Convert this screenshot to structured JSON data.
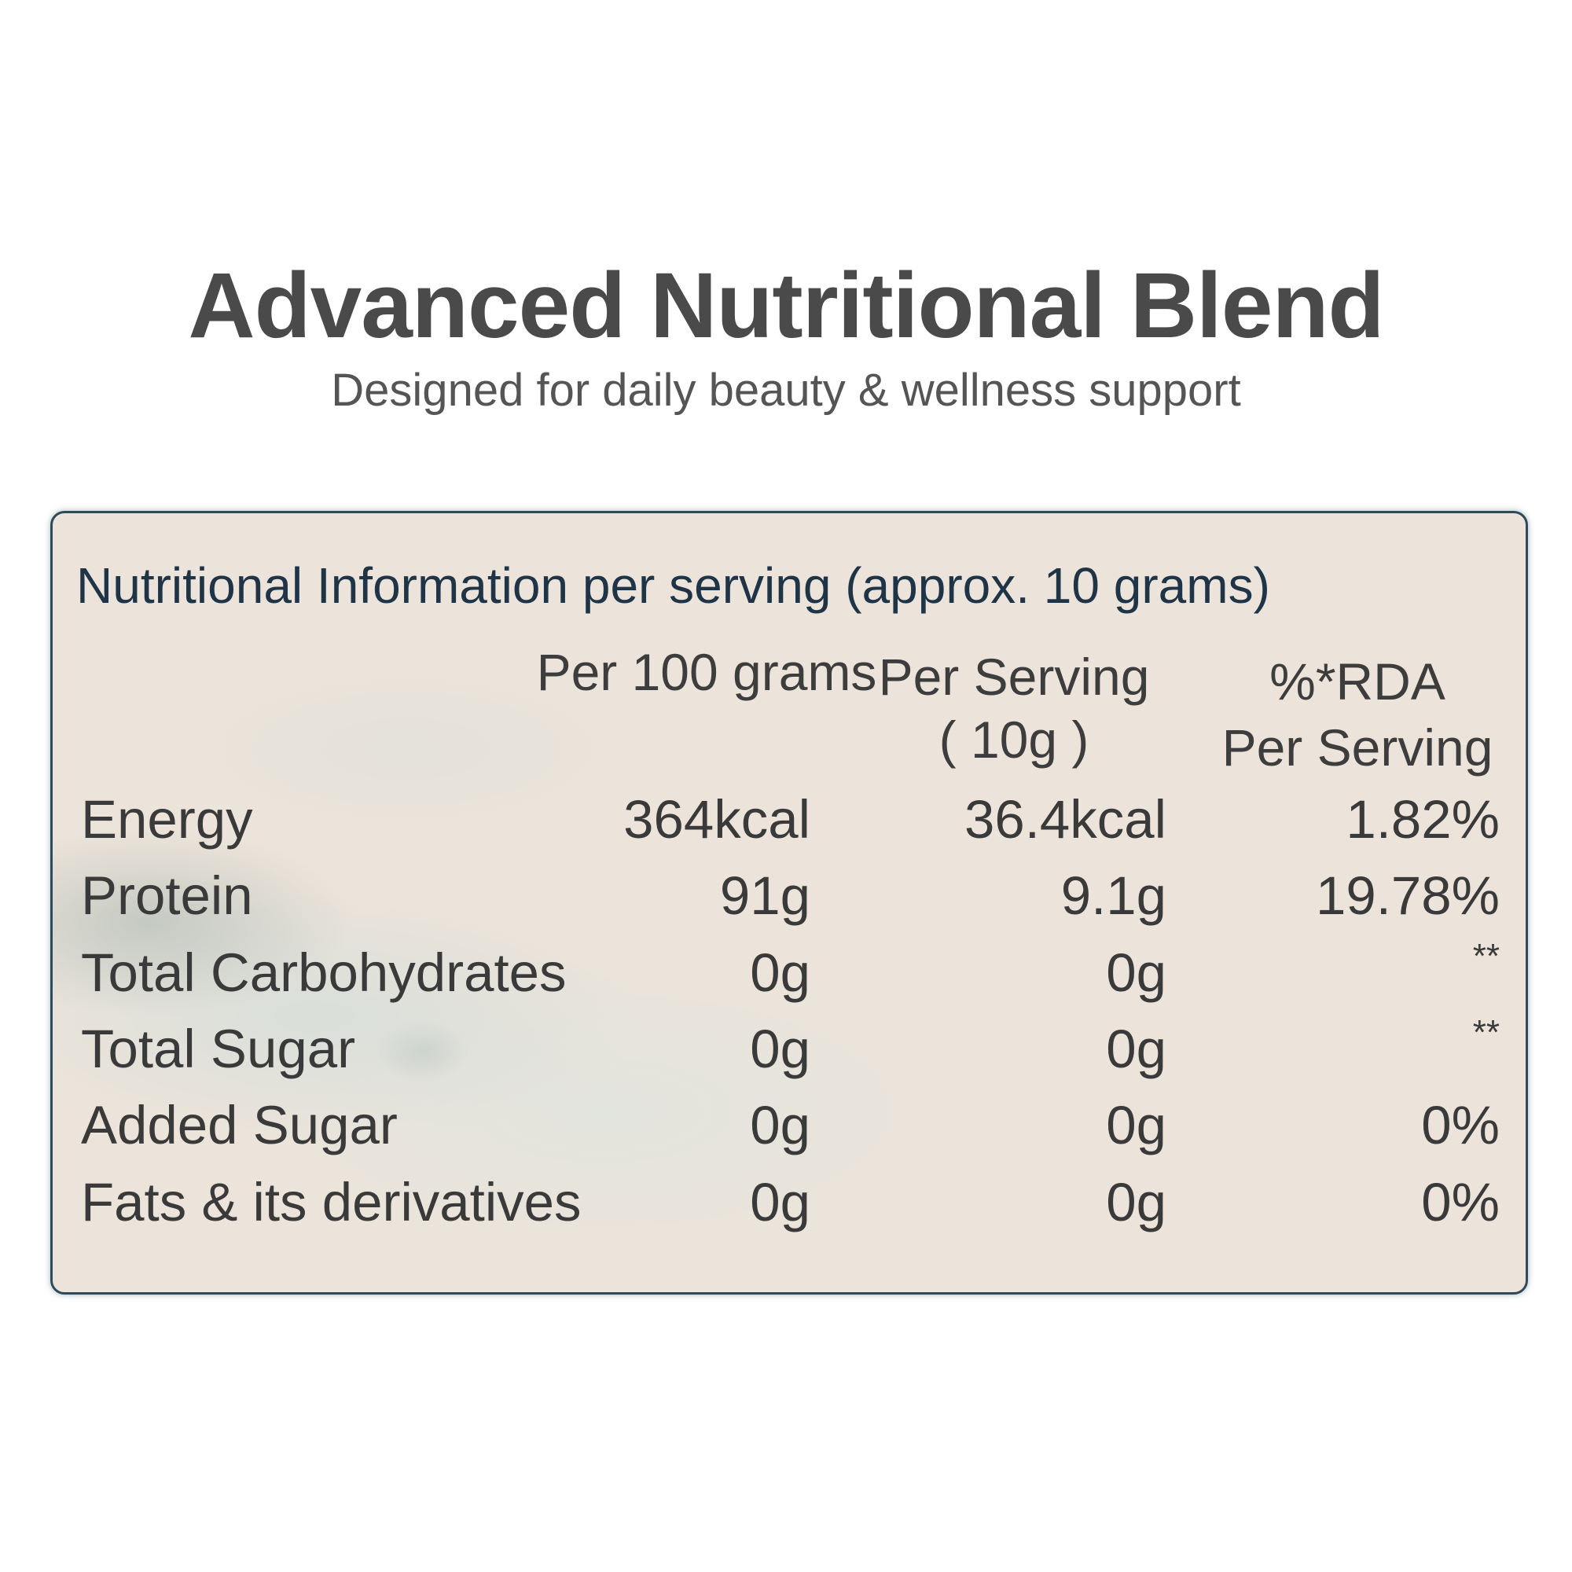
{
  "header": {
    "title": "Advanced Nutritional Blend",
    "subtitle": "Designed for daily beauty & wellness support"
  },
  "table": {
    "caption": "Nutritional Information per serving (approx. 10 grams)",
    "headers": [
      [
        "Per 100 grams"
      ],
      [
        "Per Serving",
        "( 10g )"
      ],
      [
        "%*RDA",
        "Per Serving"
      ]
    ],
    "rows": [
      [
        "Energy",
        "364kcal",
        "36.4kcal",
        "1.82%"
      ],
      [
        "Protein",
        "91g",
        "9.1g",
        "19.78%"
      ],
      [
        "Total Carbohydrates",
        "0g",
        "0g",
        "**"
      ],
      [
        "Total Sugar",
        "0g",
        "0g",
        "**"
      ],
      [
        "Added Sugar",
        "0g",
        "0g",
        "0%"
      ],
      [
        "Fats & its derivatives",
        "0g",
        "0g",
        "0%"
      ]
    ]
  }
}
